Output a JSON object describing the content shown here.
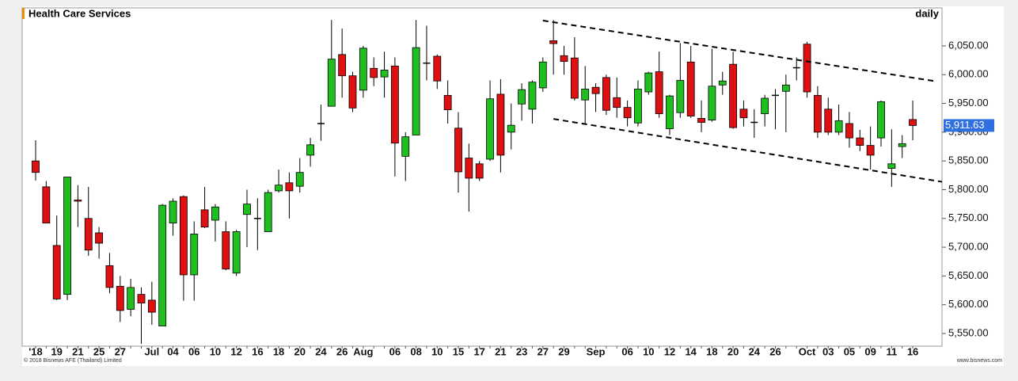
{
  "chart_data": {
    "type": "candlestick",
    "title": "Health Care Services",
    "interval": "daily",
    "copyright": "© 2018 Bisnews AFE (Thailand) Limited",
    "source": "www.bisnews.com",
    "categories": [
      "'18",
      null,
      "19",
      null,
      "21",
      null,
      "25",
      null,
      "27",
      null,
      null,
      "Jul",
      null,
      "04",
      null,
      "06",
      null,
      "10",
      null,
      "12",
      null,
      "16",
      null,
      "18",
      null,
      "20",
      null,
      "24",
      null,
      "26",
      null,
      "Aug",
      null,
      null,
      "06",
      null,
      "08",
      null,
      "10",
      null,
      "15",
      null,
      "17",
      null,
      "21",
      null,
      "23",
      null,
      "27",
      null,
      "29",
      null,
      null,
      "Sep",
      null,
      null,
      "06",
      null,
      "10",
      null,
      "12",
      null,
      "14",
      null,
      "18",
      null,
      "20",
      null,
      "24",
      null,
      "26",
      null,
      null,
      "Oct",
      null,
      "03",
      null,
      "05",
      null,
      "09",
      null,
      "11",
      null,
      "16"
    ],
    "series": {
      "open": [
        5850,
        5805,
        5703,
        5618,
        5782,
        5750,
        5725,
        5668,
        5632,
        5592,
        5618,
        5608,
        5563,
        5742,
        5788,
        5652,
        5765,
        5747,
        5727,
        5655,
        5757,
        5750,
        5727,
        5798,
        5812,
        5806,
        5860,
        5915,
        5945,
        6035,
        5998,
        5973,
        6011,
        5996,
        6015,
        5858,
        5895,
        6020,
        6032,
        5964,
        5907,
        5855,
        5845,
        5853,
        5966,
        5900,
        5949,
        5940,
        5977,
        6059,
        6033,
        6029,
        5956,
        5978,
        5995,
        5960,
        5943,
        5916,
        5970,
        6005,
        5906,
        5934,
        6022,
        5924,
        5921,
        5982,
        6018,
        5940,
        5917,
        5932,
        5964,
        5971,
        6012,
        6053,
        5964,
        5940,
        5900,
        5915,
        5890,
        5877,
        5890,
        5837,
        5875,
        5922
      ],
      "high": [
        5886,
        5815,
        5755,
        5822,
        5808,
        5805,
        5735,
        5690,
        5650,
        5645,
        5630,
        5640,
        5775,
        5785,
        5790,
        5745,
        5805,
        5775,
        5745,
        5730,
        5800,
        5785,
        5800,
        5835,
        5830,
        5855,
        5890,
        5948,
        6095,
        6080,
        6005,
        6050,
        6030,
        6040,
        6030,
        5900,
        6095,
        6085,
        6035,
        5990,
        5935,
        5880,
        5850,
        5990,
        5992,
        5950,
        5985,
        5990,
        6030,
        6095,
        6050,
        6065,
        6015,
        5985,
        6000,
        5995,
        5955,
        5990,
        6005,
        6040,
        5965,
        6055,
        6050,
        5955,
        6045,
        6005,
        6040,
        5955,
        5940,
        5965,
        5975,
        6000,
        6030,
        6057,
        5980,
        5960,
        5948,
        5935,
        5904,
        5910,
        5955,
        5905,
        5895,
        5955
      ],
      "low": [
        5816,
        5742,
        5608,
        5608,
        5735,
        5685,
        5680,
        5620,
        5570,
        5580,
        5532,
        5565,
        5563,
        5720,
        5607,
        5607,
        5733,
        5710,
        5660,
        5650,
        5700,
        5695,
        5730,
        5795,
        5750,
        5795,
        5840,
        5885,
        5945,
        5960,
        5935,
        5960,
        5980,
        5960,
        5823,
        5815,
        5895,
        5990,
        5975,
        5915,
        5795,
        5762,
        5815,
        5850,
        5830,
        5870,
        5920,
        5915,
        5970,
        6000,
        6000,
        5955,
        5915,
        5935,
        5930,
        5925,
        5910,
        5910,
        5965,
        5925,
        5895,
        5925,
        5925,
        5900,
        5918,
        5965,
        5906,
        5910,
        5890,
        5910,
        5905,
        5900,
        5990,
        5960,
        5890,
        5895,
        5895,
        5873,
        5867,
        5835,
        5875,
        5805,
        5855,
        5886
      ],
      "close": [
        5830,
        5742,
        5610,
        5822,
        5780,
        5695,
        5707,
        5630,
        5590,
        5630,
        5603,
        5587,
        5773,
        5780,
        5652,
        5723,
        5735,
        5770,
        5662,
        5727,
        5775,
        5750,
        5795,
        5808,
        5798,
        5830,
        5878,
        5915,
        6027,
        5998,
        5942,
        6046,
        5995,
        6008,
        5881,
        5892,
        6047,
        6020,
        5989,
        5939,
        5831,
        5820,
        5820,
        5958,
        5860,
        5912,
        5974,
        5987,
        6022,
        6054,
        6023,
        5959,
        5975,
        5967,
        5938,
        5943,
        5925,
        5975,
        6003,
        5932,
        5963,
        5990,
        5928,
        5917,
        5980,
        5989,
        5908,
        5925,
        5917,
        5959,
        5964,
        5982,
        6012,
        5970,
        5900,
        5900,
        5920,
        5890,
        5877,
        5860,
        5953,
        5845,
        5880,
        5911.63
      ]
    },
    "colors": {
      "up": "#1fbf1f",
      "down": "#dd1111",
      "flat": "#000000"
    },
    "last_price": {
      "value": 5911.63,
      "label": "5,911.63"
    },
    "trendlines": [
      {
        "x": [
          48,
          85
        ],
        "values": [
          6094,
          5989
        ]
      },
      {
        "x": [
          49,
          86
        ],
        "values": [
          5923,
          5813
        ]
      }
    ],
    "ylim": [
      5528,
      6116
    ],
    "yticks": [
      {
        "value": 5550,
        "label": "5,550.00"
      },
      {
        "value": 5600,
        "label": "5,600.00"
      },
      {
        "value": 5650,
        "label": "5,650.00"
      },
      {
        "value": 5700,
        "label": "5,700.00"
      },
      {
        "value": 5750,
        "label": "5,750.00"
      },
      {
        "value": 5800,
        "label": "5,800.00"
      },
      {
        "value": 5850,
        "label": "5,850.00"
      },
      {
        "value": 5900,
        "label": "5,900.00"
      },
      {
        "value": 5950,
        "label": "5,950.00"
      },
      {
        "value": 6000,
        "label": "6,000.00"
      },
      {
        "value": 6050,
        "label": "6,050.00"
      }
    ]
  }
}
